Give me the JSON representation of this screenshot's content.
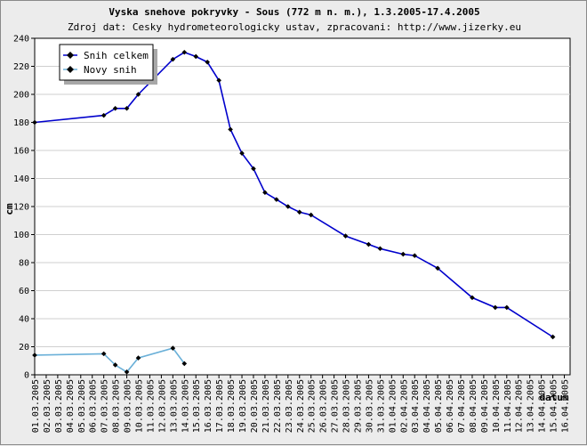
{
  "chart_data": {
    "type": "line",
    "title": "Vyska snehove pokryvky - Sous (772 m n. m.), 1.3.2005-17.4.2005",
    "subtitle": "Zdroj dat: Cesky hydrometeorologicky ustav, zpracovani: http://www.jizerky.eu",
    "xlabel": "datum",
    "ylabel": "cm",
    "ylim": [
      0,
      240
    ],
    "yticks": [
      0,
      20,
      40,
      60,
      80,
      100,
      120,
      140,
      160,
      180,
      200,
      220,
      240
    ],
    "grid": true,
    "legend_position": "top-left",
    "xticks": [
      "01.03.2005",
      "02.03.2005",
      "03.03.2005",
      "04.03.2005",
      "05.03.2005",
      "06.03.2005",
      "07.03.2005",
      "08.03.2005",
      "09.03.2005",
      "10.03.2005",
      "11.03.2005",
      "12.03.2005",
      "13.03.2005",
      "14.03.2005",
      "15.03.2005",
      "16.03.2005",
      "17.03.2005",
      "18.03.2005",
      "19.03.2005",
      "20.03.2005",
      "21.03.2005",
      "22.03.2005",
      "23.03.2005",
      "24.03.2005",
      "25.03.2005",
      "26.03.2005",
      "27.03.2005",
      "28.03.2005",
      "29.03.2005",
      "30.03.2005",
      "31.03.2005",
      "01.04.2005",
      "02.04.2005",
      "03.04.2005",
      "04.04.2005",
      "05.04.2005",
      "06.04.2005",
      "07.04.2005",
      "08.04.2005",
      "09.04.2005",
      "10.04.2005",
      "11.04.2005",
      "12.04.2005",
      "13.04.2005",
      "14.04.2005",
      "15.04.2005",
      "16.04.2005"
    ],
    "series": [
      {
        "name": "Snih celkem",
        "color": "#0000cc",
        "points": [
          [
            "01.03.2005",
            180
          ],
          [
            "07.03.2005",
            185
          ],
          [
            "08.03.2005",
            190
          ],
          [
            "09.03.2005",
            190
          ],
          [
            "10.03.2005",
            200
          ],
          [
            "13.03.2005",
            225
          ],
          [
            "14.03.2005",
            230
          ],
          [
            "15.03.2005",
            227
          ],
          [
            "16.03.2005",
            223
          ],
          [
            "17.03.2005",
            210
          ],
          [
            "18.03.2005",
            175
          ],
          [
            "19.03.2005",
            158
          ],
          [
            "20.03.2005",
            147
          ],
          [
            "21.03.2005",
            130
          ],
          [
            "22.03.2005",
            125
          ],
          [
            "23.03.2005",
            120
          ],
          [
            "24.03.2005",
            116
          ],
          [
            "25.03.2005",
            114
          ],
          [
            "28.03.2005",
            99
          ],
          [
            "30.03.2005",
            93
          ],
          [
            "31.03.2005",
            90
          ],
          [
            "02.04.2005",
            86
          ],
          [
            "03.04.2005",
            85
          ],
          [
            "05.04.2005",
            76
          ],
          [
            "08.04.2005",
            55
          ],
          [
            "10.04.2005",
            48
          ],
          [
            "11.04.2005",
            48
          ],
          [
            "15.04.2005",
            27
          ]
        ]
      },
      {
        "name": "Novy snih",
        "color": "#6ab0d8",
        "points": [
          [
            "01.03.2005",
            14
          ],
          [
            "07.03.2005",
            15
          ],
          [
            "08.03.2005",
            7
          ],
          [
            "09.03.2005",
            2
          ],
          [
            "10.03.2005",
            12
          ],
          [
            "13.03.2005",
            19
          ],
          [
            "14.03.2005",
            8
          ]
        ]
      }
    ]
  }
}
